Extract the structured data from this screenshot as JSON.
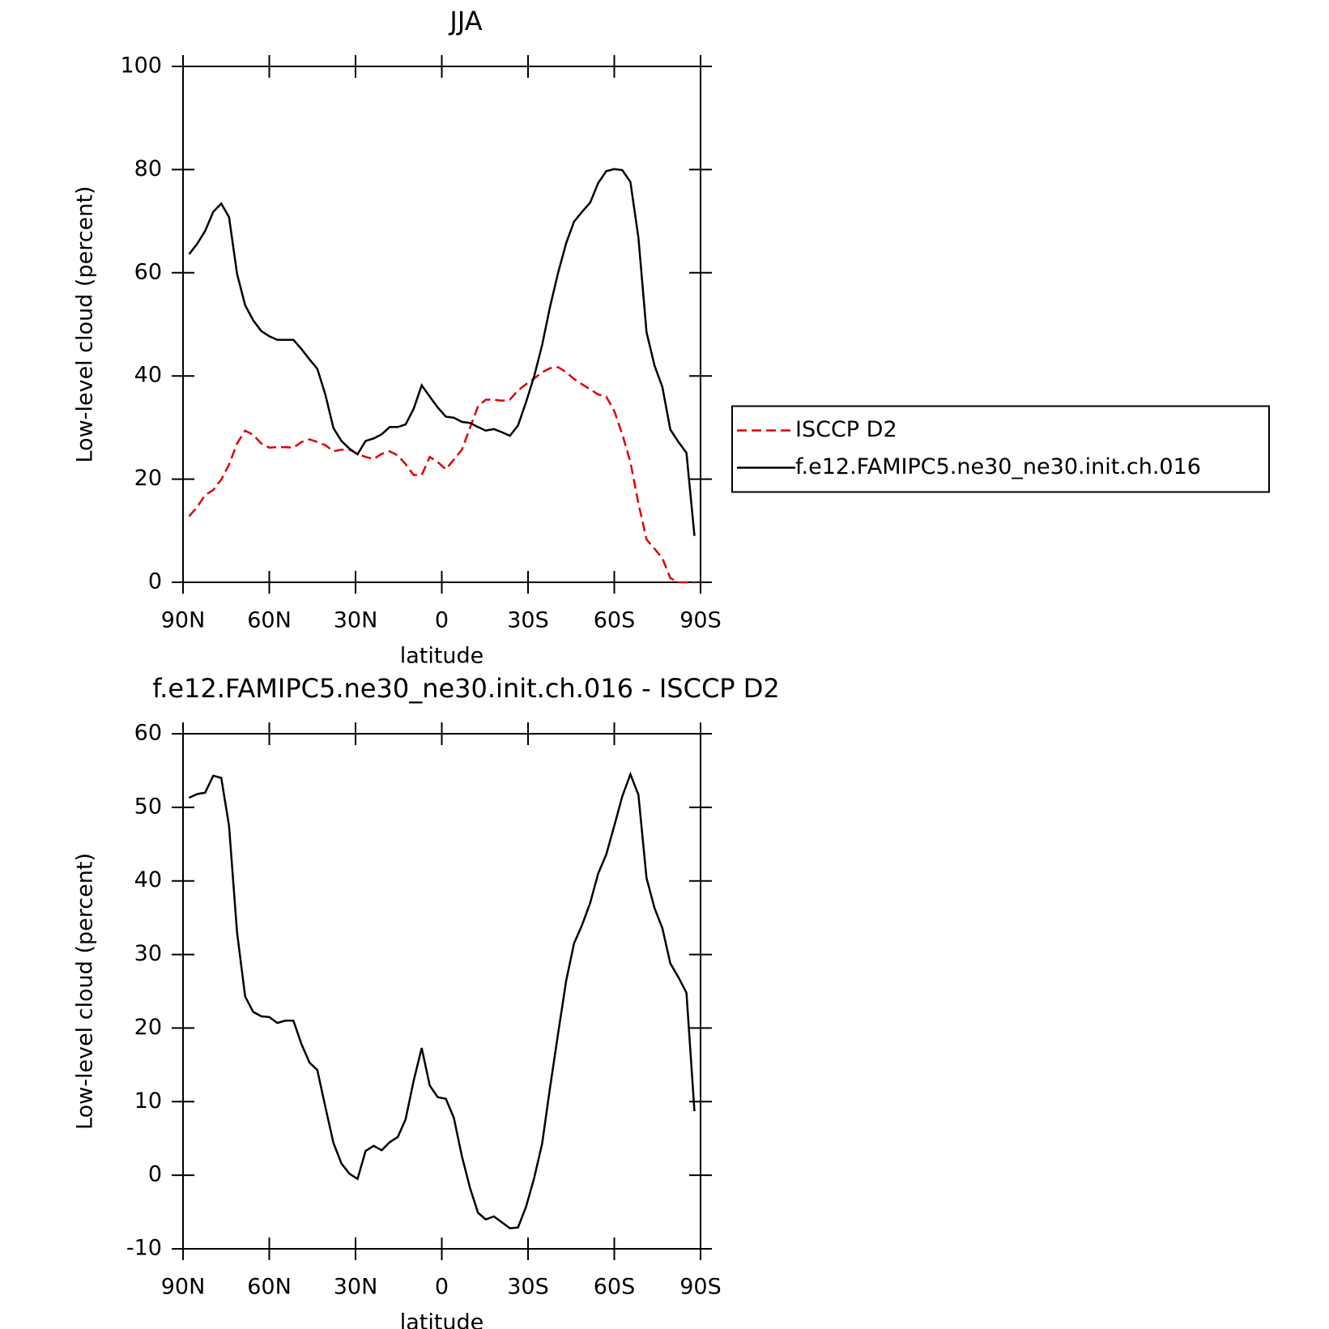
{
  "chart_data": [
    {
      "type": "line",
      "title": "JJA",
      "xlabel": "latitude",
      "ylabel": "Low-level cloud (percent)",
      "xlim": [
        90,
        -90
      ],
      "ylim": [
        0,
        100
      ],
      "xticks": [
        {
          "value": 90,
          "label": "90N"
        },
        {
          "value": 60,
          "label": "60N"
        },
        {
          "value": 30,
          "label": "30N"
        },
        0,
        {
          "value": -30,
          "label": "30S"
        },
        {
          "value": -60,
          "label": "60S"
        },
        {
          "value": -90,
          "label": "90S"
        }
      ],
      "yticks": [
        0,
        20,
        40,
        60,
        80,
        100
      ],
      "legend": "right",
      "x": [
        87.9,
        85.1,
        82.3,
        79.5,
        76.7,
        74.0,
        71.2,
        68.4,
        65.6,
        62.8,
        60.0,
        57.2,
        54.4,
        51.6,
        48.8,
        46.0,
        43.3,
        40.5,
        37.7,
        34.9,
        32.1,
        29.3,
        26.5,
        23.7,
        20.9,
        18.1,
        15.3,
        12.6,
        9.8,
        7.0,
        4.2,
        1.4,
        -1.4,
        -4.2,
        -7.0,
        -9.8,
        -12.6,
        -15.3,
        -18.1,
        -20.9,
        -23.7,
        -26.5,
        -29.3,
        -32.1,
        -34.9,
        -37.7,
        -40.5,
        -43.3,
        -46.0,
        -48.8,
        -51.6,
        -54.4,
        -57.2,
        -60.0,
        -62.8,
        -65.6,
        -68.4,
        -71.2,
        -74.0,
        -76.7,
        -79.5,
        -82.3,
        -85.1,
        -87.9
      ],
      "series": [
        {
          "name": "ISCCP D2",
          "color": "#e00000",
          "style": "dashed",
          "values": [
            12.8,
            14.6,
            16.9,
            17.9,
            19.9,
            22.8,
            26.9,
            29.4,
            28.6,
            26.9,
            26.1,
            26.2,
            26.2,
            26.1,
            27.2,
            27.7,
            27.2,
            26.6,
            25.4,
            25.7,
            25.7,
            24.9,
            24.3,
            23.9,
            24.9,
            25.4,
            24.6,
            22.9,
            20.8,
            20.8,
            24.3,
            23.3,
            21.9,
            23.8,
            25.7,
            29.9,
            34.1,
            35.4,
            35.4,
            35.2,
            35.4,
            37.2,
            38.4,
            39.5,
            40.7,
            41.5,
            41.7,
            40.7,
            39.4,
            38.4,
            37.4,
            36.4,
            36.0,
            33.2,
            28.7,
            23.3,
            15.3,
            8.3,
            6.5,
            4.7,
            0.8,
            0,
            0,
            0
          ]
        },
        {
          "name": "f.e12.FAMIPC5.ne30_ne30.init.ch.016",
          "color": "#000000",
          "style": "solid",
          "values": [
            63.6,
            65.6,
            68.1,
            71.8,
            73.4,
            70.8,
            59.8,
            53.7,
            50.8,
            48.7,
            47.7,
            47.0,
            47.0,
            47.0,
            45.2,
            43.2,
            41.4,
            36.4,
            29.9,
            27.4,
            25.9,
            24.8,
            27.4,
            27.9,
            28.7,
            30.1,
            30.1,
            30.6,
            33.6,
            38.2,
            36.0,
            33.9,
            32.1,
            31.9,
            31.1,
            30.9,
            30.1,
            29.4,
            29.7,
            29.1,
            28.4,
            30.4,
            34.9,
            39.9,
            46.0,
            53.5,
            60.1,
            65.8,
            69.9,
            71.8,
            73.6,
            77.4,
            79.7,
            80.1,
            79.9,
            77.6,
            66.8,
            48.5,
            42.0,
            37.9,
            29.6,
            27.2,
            25.1,
            9.0
          ]
        }
      ]
    },
    {
      "type": "line",
      "title": "f.e12.FAMIPC5.ne30_ne30.init.ch.016 - ISCCP D2",
      "xlabel": "latitude",
      "ylabel": "Low-level cloud (percent)",
      "xlim": [
        90,
        -90
      ],
      "ylim": [
        -10,
        60
      ],
      "xticks": [
        {
          "value": 90,
          "label": "90N"
        },
        {
          "value": 60,
          "label": "60N"
        },
        {
          "value": 30,
          "label": "30N"
        },
        0,
        {
          "value": -30,
          "label": "30S"
        },
        {
          "value": -60,
          "label": "60S"
        },
        {
          "value": -90,
          "label": "90S"
        }
      ],
      "yticks": [
        -10,
        0,
        10,
        20,
        30,
        40,
        50,
        60
      ],
      "x": [
        87.9,
        85.1,
        82.3,
        79.5,
        76.7,
        74.0,
        71.2,
        68.4,
        65.6,
        62.8,
        60.0,
        57.2,
        54.4,
        51.6,
        48.8,
        46.0,
        43.3,
        40.5,
        37.7,
        34.9,
        32.1,
        29.3,
        26.5,
        23.7,
        20.9,
        18.1,
        15.3,
        12.6,
        9.8,
        7.0,
        4.2,
        1.4,
        -1.4,
        -4.2,
        -7.0,
        -9.8,
        -12.6,
        -15.3,
        -18.1,
        -20.9,
        -23.7,
        -26.5,
        -29.3,
        -32.1,
        -34.9,
        -37.7,
        -40.5,
        -43.3,
        -46.0,
        -48.8,
        -51.6,
        -54.4,
        -57.2,
        -60.0,
        -62.8,
        -65.6,
        -68.4,
        -71.2,
        -74.0,
        -76.7,
        -79.5,
        -82.3,
        -85.1,
        -87.9
      ],
      "series": [
        {
          "color": "#000000",
          "style": "solid",
          "values": [
            51.3,
            51.8,
            52.0,
            54.3,
            54.0,
            47.5,
            33.0,
            24.3,
            22.2,
            21.6,
            21.5,
            20.7,
            21.0,
            21.0,
            17.8,
            15.3,
            14.3,
            9.3,
            4.4,
            1.6,
            0.2,
            -0.5,
            3.3,
            4.0,
            3.4,
            4.5,
            5.2,
            7.6,
            12.8,
            17.3,
            12.2,
            10.6,
            10.4,
            7.8,
            2.6,
            -1.7,
            -5.1,
            -6.0,
            -5.6,
            -6.4,
            -7.2,
            -7.1,
            -4.3,
            -0.4,
            4.3,
            12.0,
            19.4,
            26.5,
            31.5,
            34.0,
            37.0,
            41.0,
            43.6,
            47.5,
            51.5,
            54.5,
            51.7,
            40.4,
            36.3,
            33.6,
            28.8,
            26.9,
            24.8,
            8.7
          ]
        }
      ]
    }
  ]
}
